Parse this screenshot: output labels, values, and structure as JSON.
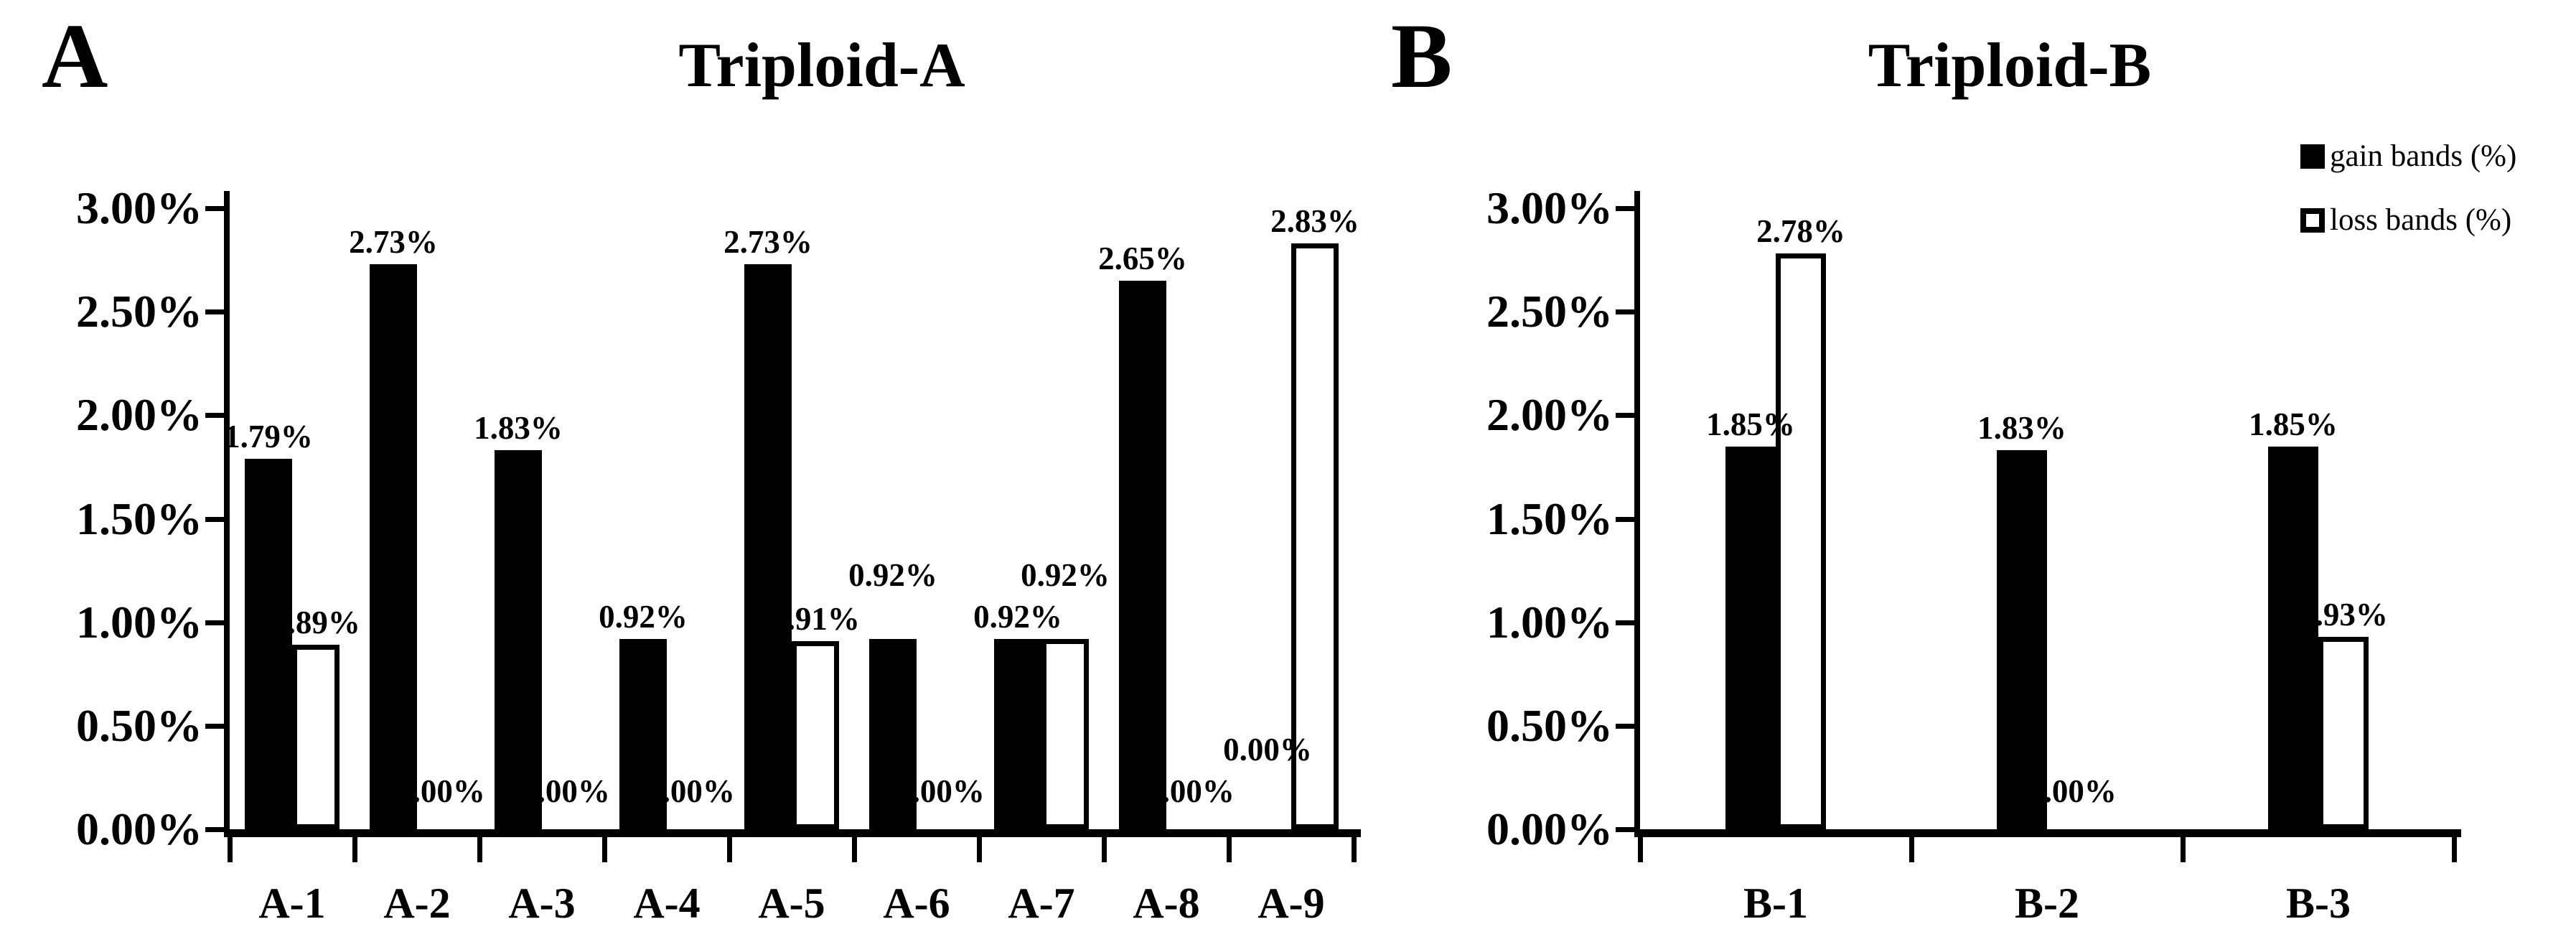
{
  "figure": {
    "background": "#ffffff",
    "text_color": "#000000",
    "bar_fill_color": "#000000",
    "loss_bar_fill_color": "#ffffff",
    "loss_bar_outline_color": "#000000"
  },
  "legend": {
    "position": "top-right",
    "items": [
      {
        "label": "gain bands (%)",
        "swatch": "black-filled-square"
      },
      {
        "label": "loss bands (%)",
        "swatch": "white-outlined-square"
      }
    ]
  },
  "chart_data": [
    {
      "type": "bar",
      "panel_label": "A",
      "title": "Triploid-A",
      "xlabel": "",
      "ylabel": "",
      "grid": false,
      "ylim_pct": [
        0,
        3
      ],
      "y_tick_labels": [
        "3.00%",
        "2.50%",
        "2.00%",
        "1.50%",
        "1.00%",
        "0.50%",
        "0.00%"
      ],
      "categories": [
        "A-1",
        "A-2",
        "A-3",
        "A-4",
        "A-5",
        "A-6",
        "A-7",
        "A-8",
        "A-9"
      ],
      "series": [
        {
          "name": "gain bands (%)",
          "style": "filled",
          "values_pct": [
            1.79,
            2.73,
            1.83,
            0.92,
            2.73,
            0.92,
            0.92,
            2.65,
            0.0
          ]
        },
        {
          "name": "loss bands (%)",
          "style": "outlined",
          "values_pct": [
            0.89,
            0.0,
            0.0,
            0.0,
            0.91,
            0.0,
            0.92,
            0.0,
            2.83
          ]
        }
      ],
      "data_labels": true,
      "data_label_format": "0.00%"
    },
    {
      "type": "bar",
      "panel_label": "B",
      "title": "Triploid-B",
      "xlabel": "",
      "ylabel": "",
      "grid": false,
      "ylim_pct": [
        0,
        3
      ],
      "y_tick_labels": [
        "3.00%",
        "2.50%",
        "2.00%",
        "1.50%",
        "1.00%",
        "0.50%",
        "0.00%"
      ],
      "categories": [
        "B-1",
        "B-2",
        "B-3"
      ],
      "series": [
        {
          "name": "gain bands (%)",
          "style": "filled",
          "values_pct": [
            1.85,
            1.83,
            1.85
          ]
        },
        {
          "name": "loss bands (%)",
          "style": "outlined",
          "values_pct": [
            2.78,
            0.0,
            0.93
          ]
        }
      ],
      "data_labels": true,
      "data_label_format": "0.00%"
    }
  ]
}
